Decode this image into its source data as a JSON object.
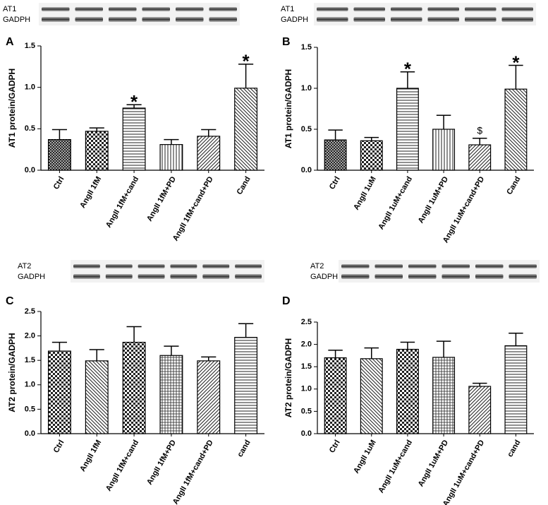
{
  "chart_data": [
    {
      "type": "bar",
      "panel": "A",
      "ylabel": "AT1 protein/GADPH",
      "blot_labels": [
        "AT1",
        "GADPH"
      ],
      "categories": [
        "Ctrl",
        "AngII 1fM",
        "AngII 1fM+cand",
        "AngII 1fM+PD",
        "AngII 1fM+cand+PD",
        "Cand"
      ],
      "values": [
        0.37,
        0.47,
        0.75,
        0.31,
        0.41,
        0.99
      ],
      "errors": [
        0.12,
        0.04,
        0.04,
        0.06,
        0.08,
        0.29
      ],
      "markers": [
        null,
        null,
        "*",
        null,
        null,
        "*"
      ],
      "ylim": [
        0,
        1.5
      ],
      "yticks": [
        {
          "value": 0,
          "label": "0.0"
        },
        {
          "value": 0.5,
          "label": "0.5"
        },
        {
          "value": 1,
          "label": "1.0"
        },
        {
          "value": 1.5,
          "label": "1.5"
        }
      ]
    },
    {
      "type": "bar",
      "panel": "B",
      "ylabel": "AT1 protein/GADPH",
      "blot_labels": [
        "AT1",
        "GADPH"
      ],
      "categories": [
        "Ctrl",
        "AngII 1uM",
        "AngII 1uM+cand",
        "AngII 1uM+PD",
        "AngII 1uM+cand+PD",
        "Cand"
      ],
      "values": [
        0.37,
        0.36,
        1.0,
        0.5,
        0.31,
        0.99
      ],
      "errors": [
        0.12,
        0.04,
        0.2,
        0.17,
        0.08,
        0.29
      ],
      "markers": [
        null,
        null,
        "*",
        null,
        "$",
        "*"
      ],
      "ylim": [
        0,
        1.5
      ],
      "yticks": [
        {
          "value": 0,
          "label": "0.0"
        },
        {
          "value": 0.5,
          "label": "0.5"
        },
        {
          "value": 1,
          "label": "1.0"
        },
        {
          "value": 1.5,
          "label": "1.5"
        }
      ]
    },
    {
      "type": "bar",
      "panel": "C",
      "ylabel": "AT2 protein/GADPH",
      "blot_labels": [
        "AT2",
        "GADPH"
      ],
      "categories": [
        "Ctrl",
        "AngII 1fM",
        "AngII 1fM+cand",
        "AngII 1fM+PD",
        "AngII 1fM+cand+PD",
        "cand"
      ],
      "values": [
        1.69,
        1.49,
        1.87,
        1.6,
        1.49,
        1.97
      ],
      "errors": [
        0.18,
        0.23,
        0.32,
        0.19,
        0.08,
        0.28
      ],
      "ylim": [
        0,
        2.5
      ],
      "yticks": [
        {
          "value": 0,
          "label": "0.0"
        },
        {
          "value": 0.5,
          "label": "0.5"
        },
        {
          "value": 1,
          "label": "1.0"
        },
        {
          "value": 1.5,
          "label": "1.5"
        },
        {
          "value": 2,
          "label": "2.0"
        },
        {
          "value": 2.5,
          "label": "2.5"
        }
      ]
    },
    {
      "type": "bar",
      "panel": "D",
      "ylabel": "AT2 protein/GADPH",
      "blot_labels": [
        "AT2",
        "GADPH"
      ],
      "categories": [
        "Ctrl",
        "AngII 1uM",
        "AngII 1uM+cand",
        "AngII 1uM+PD",
        "AngII 1uM+cand+PD",
        "cand"
      ],
      "values": [
        1.7,
        1.68,
        1.89,
        1.71,
        1.06,
        1.97
      ],
      "errors": [
        0.17,
        0.24,
        0.16,
        0.36,
        0.07,
        0.28
      ],
      "ylim": [
        0,
        2.5
      ],
      "yticks": [
        {
          "value": 0,
          "label": "0.0"
        },
        {
          "value": 0.5,
          "label": "0.5"
        },
        {
          "value": 1,
          "label": "1.0"
        },
        {
          "value": 1.5,
          "label": "1.5"
        },
        {
          "value": 2,
          "label": "2.0"
        },
        {
          "value": 2.5,
          "label": "2.5"
        }
      ]
    }
  ]
}
